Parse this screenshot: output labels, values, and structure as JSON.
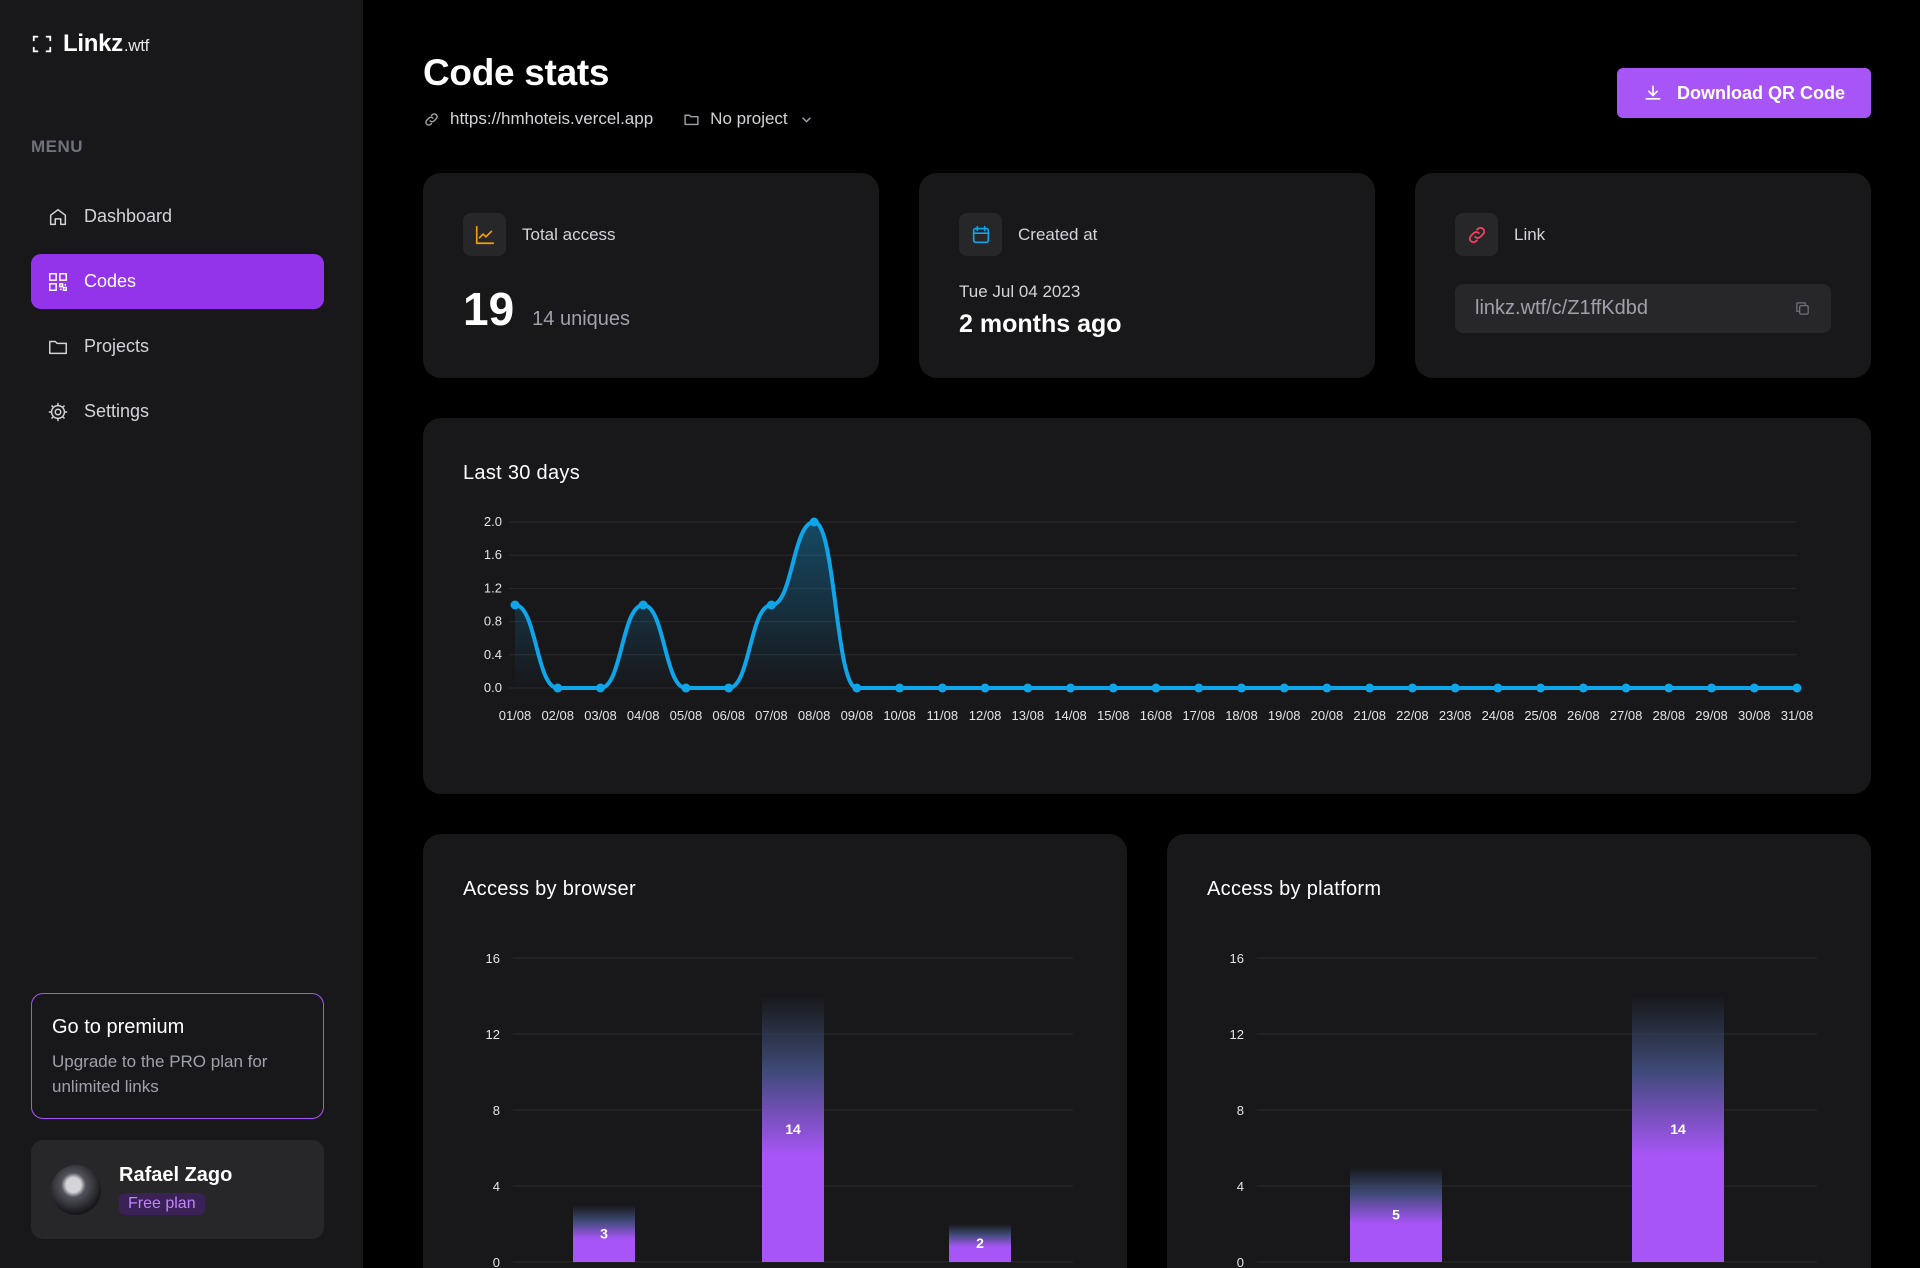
{
  "app": {
    "name": "Linkz",
    "suffix": ".wtf"
  },
  "sidebar": {
    "menu_heading": "MENU",
    "items": [
      {
        "label": "Dashboard",
        "icon": "home-icon",
        "active": false
      },
      {
        "label": "Codes",
        "icon": "qr-code-icon",
        "active": true
      },
      {
        "label": "Projects",
        "icon": "folder-icon",
        "active": false
      },
      {
        "label": "Settings",
        "icon": "gear-icon",
        "active": false
      }
    ],
    "premium": {
      "title": "Go to premium",
      "text": "Upgrade to the PRO plan for unlimited links"
    },
    "user": {
      "name": "Rafael Zago",
      "plan": "Free plan"
    }
  },
  "header": {
    "title": "Code stats",
    "url": "https://hmhoteis.vercel.app",
    "project": "No project",
    "download_label": "Download QR Code"
  },
  "stats": {
    "total": {
      "label": "Total access",
      "value": "19",
      "uniques": "14 uniques"
    },
    "created": {
      "label": "Created at",
      "date": "Tue Jul 04 2023",
      "relative": "2 months ago"
    },
    "link": {
      "label": "Link",
      "value": "linkz.wtf/c/Z1ffKdbd"
    }
  },
  "colors": {
    "accent": "#a855f7",
    "accent_dark": "#9333ea",
    "line": "#0ea5e9",
    "total_icon": "#f59e0b",
    "created_icon": "#0ea5e9",
    "link_icon": "#f43f5e"
  },
  "chart_data": [
    {
      "type": "line",
      "title": "Last 30 days",
      "x": [
        "01/08",
        "02/08",
        "03/08",
        "04/08",
        "05/08",
        "06/08",
        "07/08",
        "08/08",
        "09/08",
        "10/08",
        "11/08",
        "12/08",
        "13/08",
        "14/08",
        "15/08",
        "16/08",
        "17/08",
        "18/08",
        "19/08",
        "20/08",
        "21/08",
        "22/08",
        "23/08",
        "24/08",
        "25/08",
        "26/08",
        "27/08",
        "28/08",
        "29/08",
        "30/08",
        "31/08"
      ],
      "y": [
        1,
        0,
        0,
        1,
        0,
        0,
        1,
        2,
        0,
        0,
        0,
        0,
        0,
        0,
        0,
        0,
        0,
        0,
        0,
        0,
        0,
        0,
        0,
        0,
        0,
        0,
        0,
        0,
        0,
        0,
        0
      ],
      "yticks": [
        "0.0",
        "0.4",
        "0.8",
        "1.2",
        "1.6",
        "2.0"
      ],
      "ylim": [
        0,
        2
      ]
    },
    {
      "type": "bar",
      "title": "Access by browser",
      "values": [
        3,
        14,
        2
      ],
      "yticks": [
        "0",
        "4",
        "8",
        "12",
        "16"
      ],
      "ylim": [
        0,
        16
      ]
    },
    {
      "type": "bar",
      "title": "Access by platform",
      "values": [
        5,
        14
      ],
      "yticks": [
        "0",
        "4",
        "8",
        "12",
        "16"
      ],
      "ylim": [
        0,
        16
      ]
    }
  ]
}
